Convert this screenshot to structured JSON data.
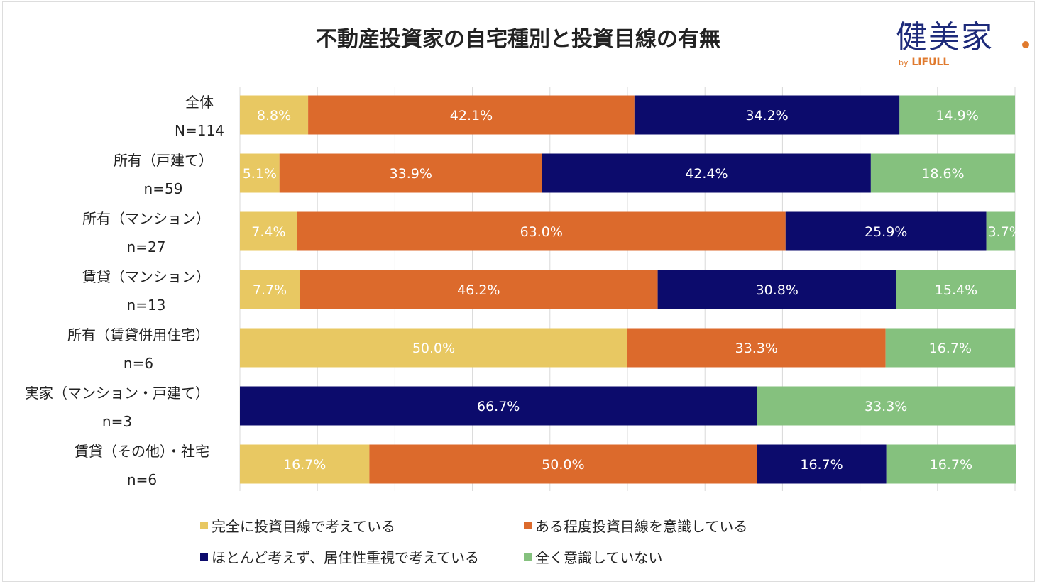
{
  "chart_data": {
    "type": "bar",
    "orientation": "horizontal",
    "stacked": "100%",
    "title": "不動産投資家の自宅種別と投資目線の有無",
    "categories": [
      {
        "name": "全体",
        "n": "N=114"
      },
      {
        "name": "所有（戸建て）",
        "n": "n=59"
      },
      {
        "name": "所有（マンション）",
        "n": "n=27"
      },
      {
        "name": "賃貸（マンション）",
        "n": "n=13"
      },
      {
        "name": "所有（賃貸併用住宅）",
        "n": "n=6"
      },
      {
        "name": "実家（マンション・戸建て）",
        "n": "n=3"
      },
      {
        "name": "賃貸（その他）・社宅",
        "n": "n=6"
      }
    ],
    "series": [
      {
        "name": "完全に投資目線で考えている",
        "color": "#e8c862",
        "values": [
          8.8,
          5.1,
          7.4,
          7.7,
          50.0,
          0,
          16.7
        ]
      },
      {
        "name": "ある程度投資目線を意識している",
        "color": "#dc6a2c",
        "values": [
          42.1,
          33.9,
          63.0,
          46.2,
          33.3,
          0,
          50.0
        ]
      },
      {
        "name": "ほとんど考えず、居住性重視で考えている",
        "color": "#0c0b6c",
        "values": [
          34.2,
          42.4,
          25.9,
          30.8,
          0,
          66.7,
          16.7
        ]
      },
      {
        "name": "全く意識していない",
        "color": "#85c17e",
        "values": [
          14.9,
          18.6,
          3.7,
          15.4,
          16.7,
          33.3,
          16.7
        ]
      }
    ],
    "xlim": [
      0,
      100
    ],
    "grid": true,
    "legend": "bottom"
  },
  "logo": {
    "main": "健美家",
    "by": "by",
    "brand": "LIFULL"
  }
}
